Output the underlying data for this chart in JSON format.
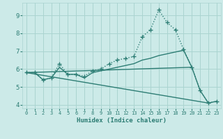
{
  "title": "",
  "xlabel": "Humidex (Indice chaleur)",
  "ylabel": "",
  "background_color": "#cceae8",
  "grid_color": "#aad4d0",
  "line_color": "#2d7d74",
  "xlim": [
    -0.5,
    23.5
  ],
  "ylim": [
    3.8,
    9.7
  ],
  "xticks": [
    0,
    1,
    2,
    3,
    4,
    5,
    6,
    7,
    8,
    9,
    10,
    11,
    12,
    13,
    14,
    15,
    16,
    17,
    18,
    19,
    20,
    21,
    22,
    23
  ],
  "yticks": [
    4,
    5,
    6,
    7,
    8,
    9
  ],
  "series": [
    {
      "x": [
        0,
        1,
        2,
        3,
        4,
        5,
        6,
        7,
        8,
        9,
        10,
        11,
        12,
        13,
        14,
        15,
        16,
        17,
        18,
        19,
        20,
        21,
        22,
        23
      ],
      "y": [
        5.8,
        5.8,
        5.4,
        5.5,
        6.3,
        5.7,
        5.7,
        5.6,
        5.9,
        6.0,
        6.3,
        6.5,
        6.6,
        6.7,
        7.8,
        8.2,
        9.3,
        8.6,
        8.2,
        7.1,
        6.1,
        4.8,
        4.1,
        4.2
      ],
      "style": "dotted_markers"
    },
    {
      "x": [
        0,
        1,
        2,
        3,
        4,
        5,
        6,
        7,
        8,
        9,
        10,
        11,
        12,
        13,
        14,
        15,
        16,
        17,
        18,
        19,
        20,
        21,
        22,
        23
      ],
      "y": [
        5.8,
        5.8,
        5.4,
        5.5,
        6.1,
        5.7,
        5.7,
        5.5,
        5.8,
        5.9,
        6.0,
        6.1,
        6.2,
        6.3,
        6.5,
        6.6,
        6.75,
        6.85,
        6.95,
        7.05,
        6.1,
        4.8,
        4.1,
        4.2
      ],
      "style": "solid"
    },
    {
      "x": [
        0,
        22
      ],
      "y": [
        5.8,
        4.1
      ],
      "style": "solid"
    },
    {
      "x": [
        0,
        20
      ],
      "y": [
        5.8,
        6.1
      ],
      "style": "solid"
    }
  ]
}
